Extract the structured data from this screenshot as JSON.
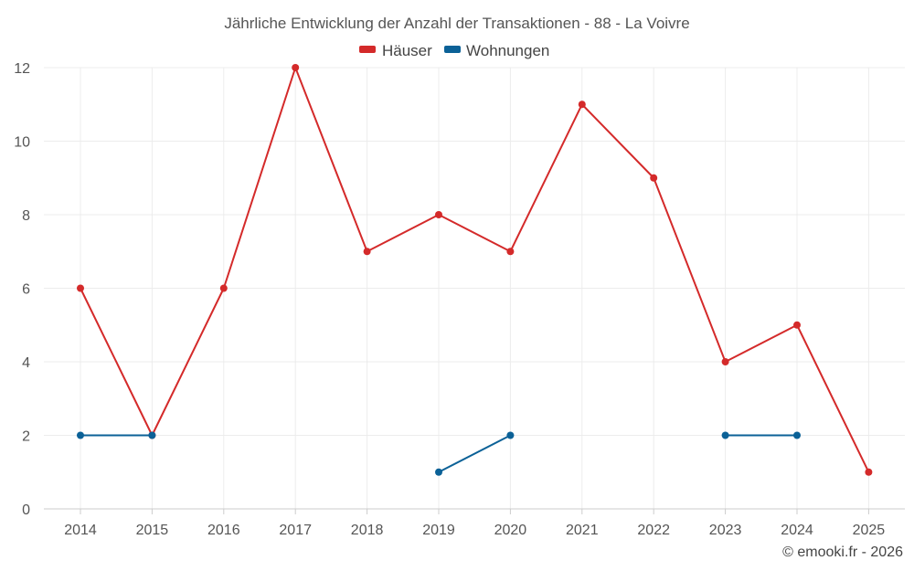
{
  "chart_data": {
    "type": "line",
    "title": "Jährliche Entwicklung der Anzahl der Transaktionen - 88 - La Voivre",
    "x": [
      "2014",
      "2015",
      "2016",
      "2017",
      "2018",
      "2019",
      "2020",
      "2021",
      "2022",
      "2023",
      "2024",
      "2025"
    ],
    "series": [
      {
        "name": "Häuser",
        "color": "#d42a2a",
        "values": [
          6,
          2,
          6,
          12,
          7,
          8,
          7,
          11,
          9,
          4,
          5,
          1
        ]
      },
      {
        "name": "Wohnungen",
        "color": "#0b6197",
        "values": [
          2,
          2,
          null,
          null,
          null,
          1,
          2,
          null,
          null,
          2,
          2,
          null
        ]
      }
    ],
    "ylim": [
      0,
      12
    ],
    "yticks": [
      0,
      2,
      4,
      6,
      8,
      10,
      12
    ],
    "grid": true,
    "legend_position": "top-center"
  },
  "credit": "© emooki.fr - 2026"
}
